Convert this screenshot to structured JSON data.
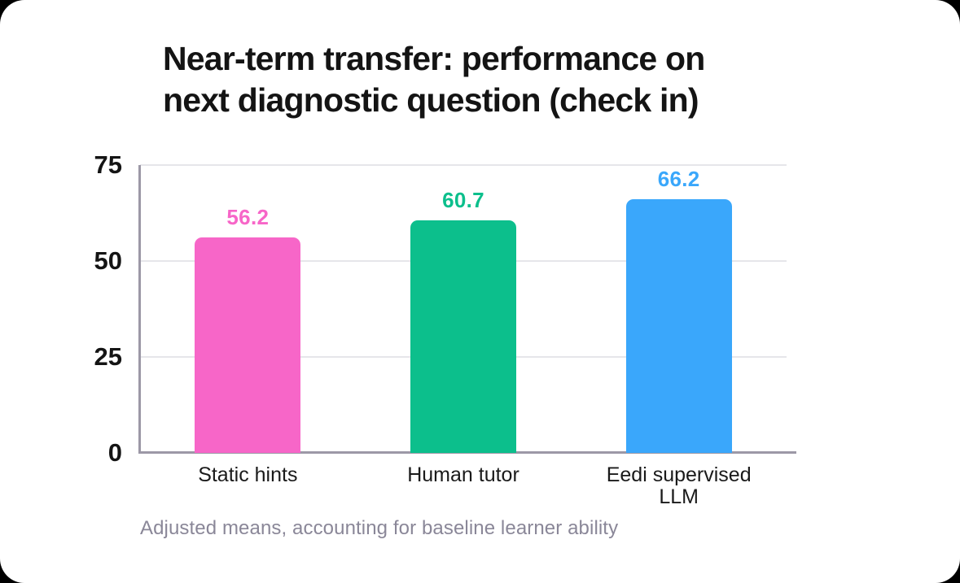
{
  "chart_data": {
    "type": "bar",
    "title": "Near-term transfer: performance on next diagnostic question (check in)",
    "title_lines": [
      "Near-term transfer: performance on",
      "next diagnostic question (check in)"
    ],
    "categories": [
      "Static hints",
      "Human tutor",
      "Eedi supervised LLM"
    ],
    "values": [
      56.2,
      60.7,
      66.2
    ],
    "value_labels": [
      "56.2",
      "60.7",
      "66.2"
    ],
    "bar_colors": [
      "#f766c8",
      "#0cbf8c",
      "#3aa7fb"
    ],
    "ylim": [
      0,
      75
    ],
    "yticks": [
      0,
      25,
      50,
      75
    ],
    "grid": true,
    "legend": null,
    "xlabel": "",
    "ylabel": "",
    "note": "Adjusted means, accounting for baseline learner ability"
  },
  "colors": {
    "axis": "#9c98a6",
    "gridline": "#e6e6ea",
    "text": "#141414",
    "note_text": "#8a8798",
    "card_background": "#ffffff",
    "page_background": "#000000"
  }
}
